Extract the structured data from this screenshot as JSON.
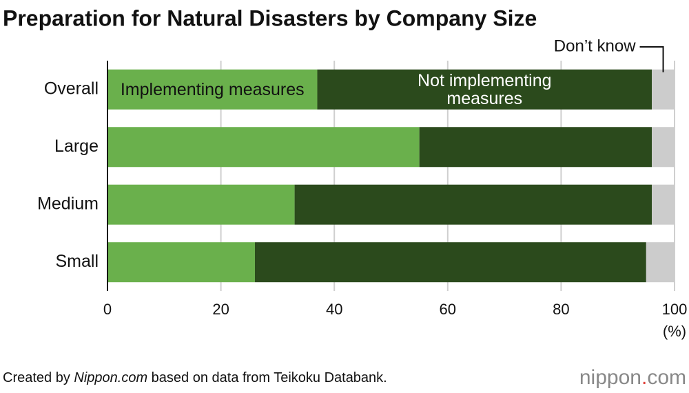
{
  "chart_data": {
    "type": "stacked_barh",
    "title": "Preparation for Natural Disasters by Company Size",
    "categories": [
      "Overall",
      "Large",
      "Medium",
      "Small"
    ],
    "series": [
      {
        "name": "Implementing measures",
        "color": "#6ab04c",
        "label_color": "#111111",
        "values": [
          37,
          55,
          33,
          26
        ]
      },
      {
        "name": "Not implementing measures",
        "color": "#2b4a1c",
        "label_color": "#ffffff",
        "values": [
          59,
          41,
          63,
          69
        ]
      },
      {
        "name": "Don’t know",
        "color": "#cccccc",
        "values": [
          4,
          4,
          4,
          5
        ]
      }
    ],
    "xlim": [
      0,
      100
    ],
    "xticks": [
      0,
      20,
      40,
      60,
      80,
      100
    ],
    "grid": true,
    "x_unit": "(%)",
    "source": [
      "Created by ",
      "Nippon.com",
      " based on data from Teikoku Databank."
    ],
    "logo": [
      "nippon",
      ".",
      "com"
    ]
  }
}
